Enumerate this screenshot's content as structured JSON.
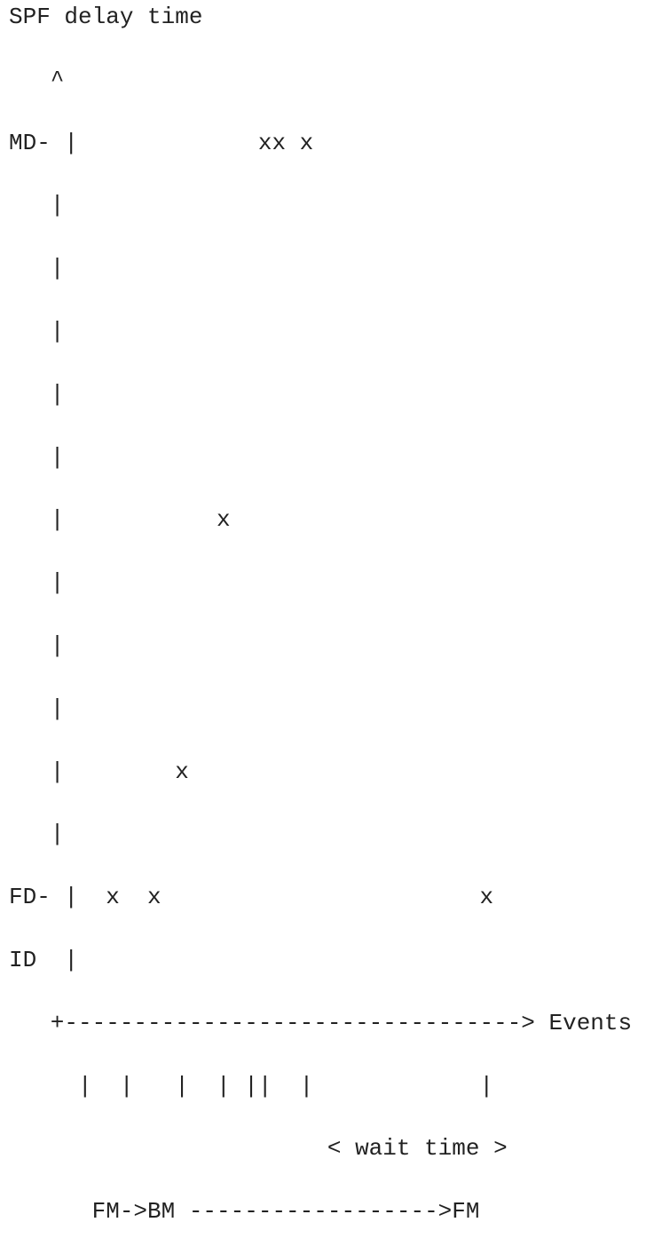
{
  "diagram": {
    "lines": [
      "SPF delay time",
      "   ^",
      "MD- |             xx x",
      "   |",
      "   |",
      "   |",
      "   |",
      "   |",
      "   |           x",
      "   |",
      "   |",
      "   |",
      "   |        x",
      "   |",
      "FD- |  x  x                       x",
      "ID  |",
      "   +---------------------------------> Events",
      "     |  |   |  | ||  |            |",
      "                       < wait time >",
      "      FM->BM ------------------>FM"
    ]
  },
  "chart_data": {
    "type": "scatter",
    "title": "",
    "ylabel": "SPF delay time",
    "xlabel": "Events",
    "y_levels": [
      "ID",
      "FD",
      "MD"
    ],
    "annotations": [
      "< wait time >",
      "FM->BM ------------------>FM"
    ]
  }
}
